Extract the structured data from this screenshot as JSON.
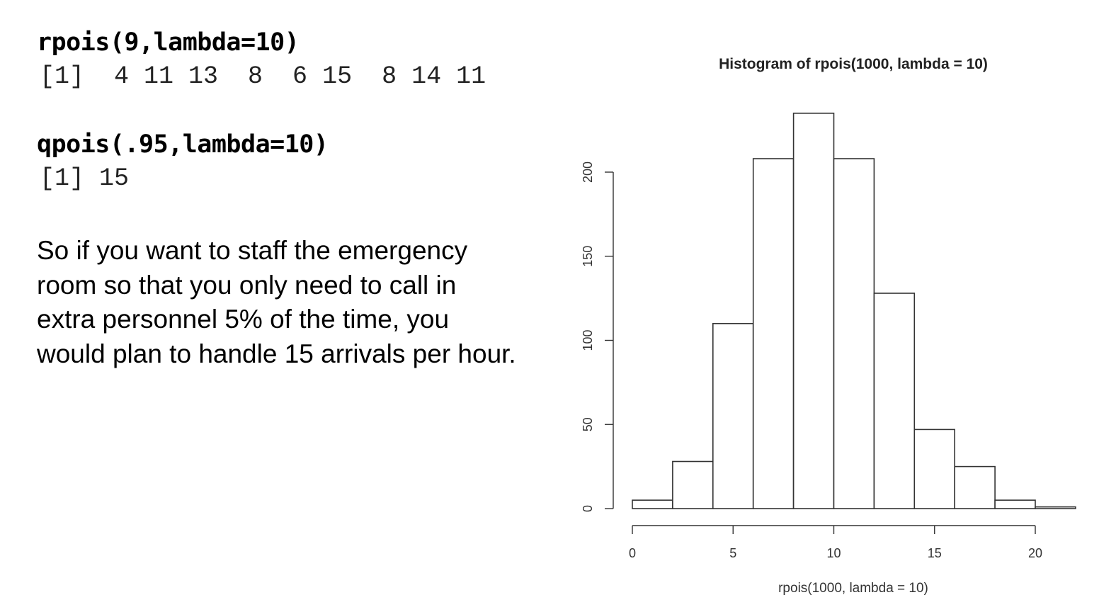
{
  "code": {
    "cmd1": "rpois(9,lambda=10)",
    "out1": "[1]  4 11 13  8  6 15  8 14 11",
    "cmd2": "qpois(.95,lambda=10)",
    "out2": "[1] 15"
  },
  "explanation": {
    "lines": [
      "So if you want to staff the emergency",
      "room so that you only need to call in",
      "extra personnel 5% of the time, you",
      "would plan to handle 15 arrivals per hour."
    ]
  },
  "chart_data": {
    "type": "bar",
    "title": "Histogram of rpois(1000, lambda = 10)",
    "xlabel": "rpois(1000, lambda = 10)",
    "ylabel": "",
    "bin_edges": [
      0,
      2,
      4,
      6,
      8,
      10,
      12,
      14,
      16,
      18,
      20,
      22
    ],
    "values": [
      5,
      28,
      110,
      208,
      235,
      208,
      128,
      47,
      25,
      5,
      1
    ],
    "xlim": [
      0,
      22
    ],
    "ylim": [
      0,
      235
    ],
    "x_ticks": [
      0,
      5,
      10,
      15,
      20
    ],
    "y_ticks": [
      0,
      50,
      100,
      150,
      200
    ],
    "grid": false,
    "bar_fill": "#ffffff",
    "bar_stroke": "#333333"
  }
}
